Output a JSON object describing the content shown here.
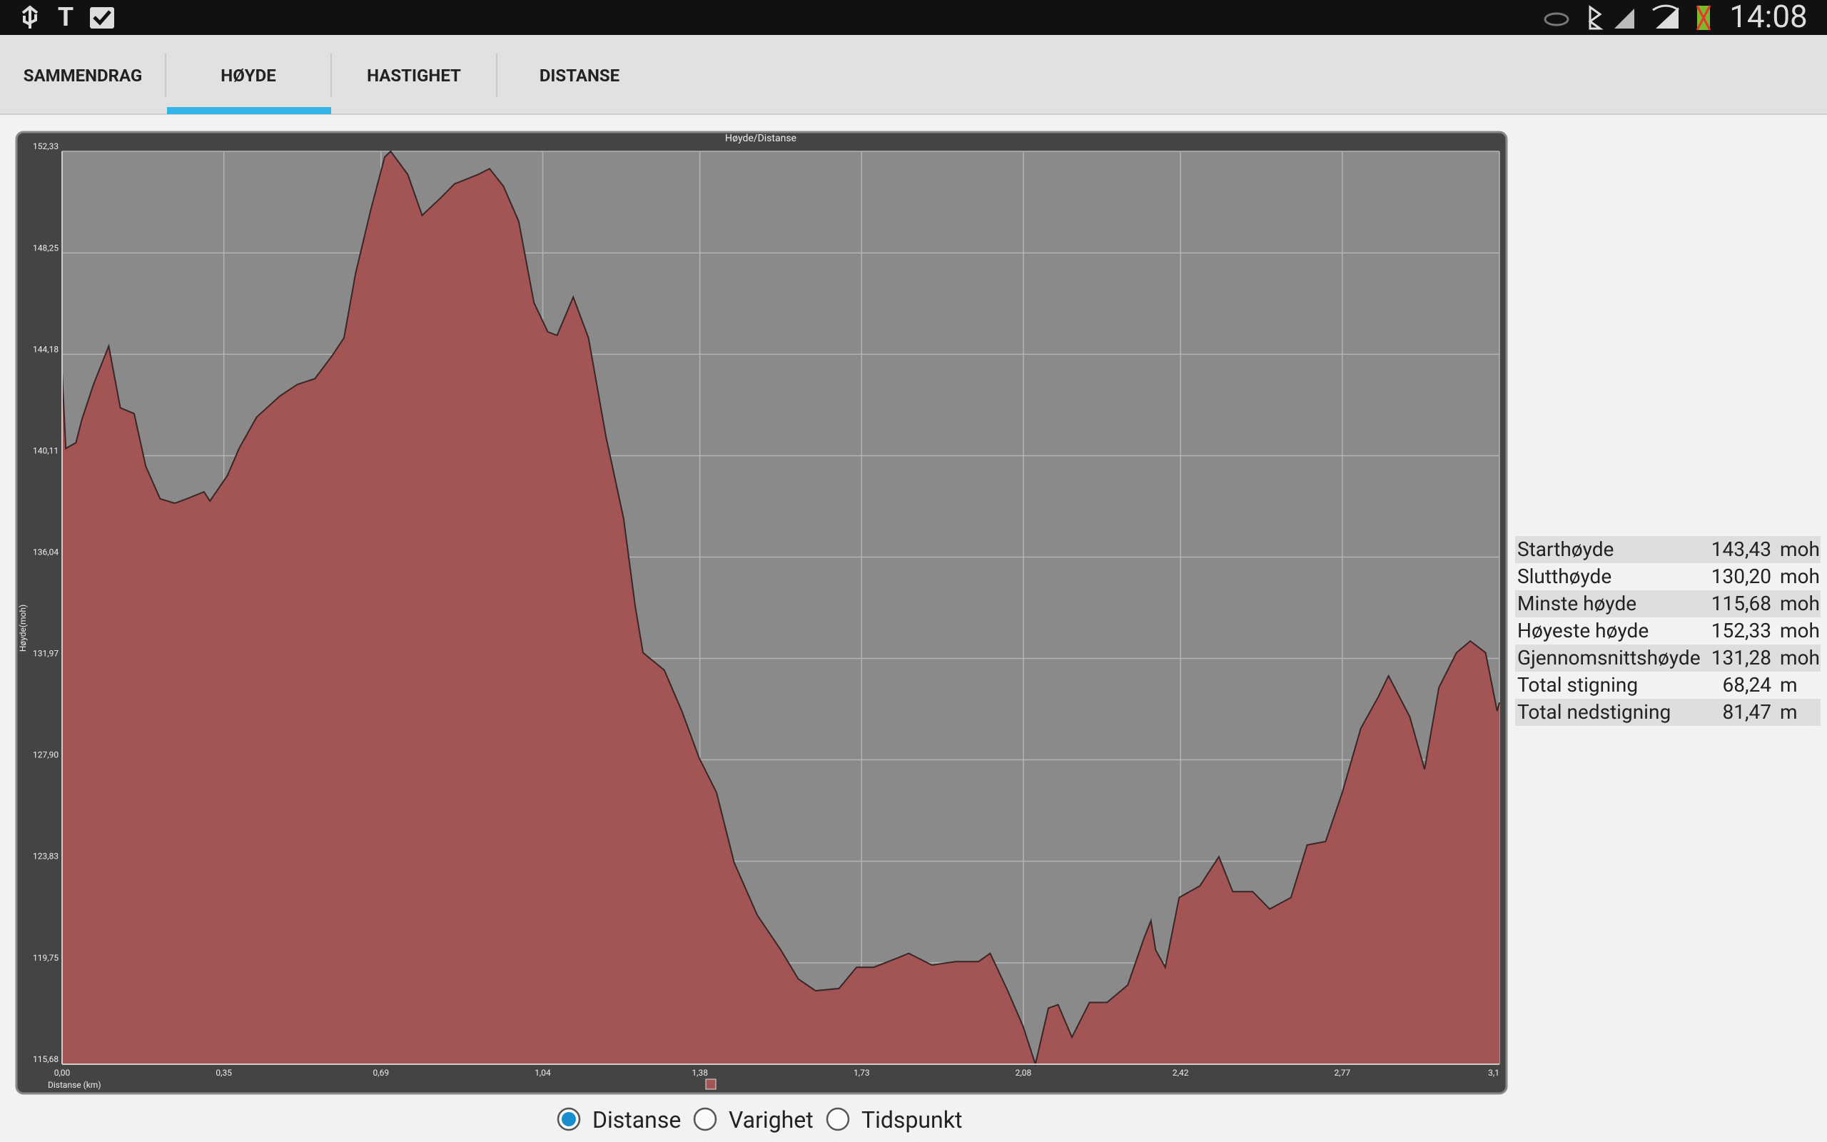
{
  "status_bar": {
    "time": "14:08"
  },
  "tabs": [
    "SAMMENDRAG",
    "HØYDE",
    "HASTIGHET",
    "DISTANSE"
  ],
  "selected_tab": 1,
  "chart_data": {
    "type": "area",
    "title": "Høyde/Distanse",
    "x_label": "Distanse (km)",
    "y_label": "Høyde(moh)",
    "color": "#a35555",
    "line_color": "#3a2626",
    "grid": true,
    "xlim": [
      0,
      3.11
    ],
    "ylim": [
      115.68,
      152.33
    ],
    "xticks": [
      {
        "value": 0,
        "label": "0,00"
      },
      {
        "value": 0.35,
        "label": "0,35"
      },
      {
        "value": 0.69,
        "label": "0,69"
      },
      {
        "value": 1.04,
        "label": "1,04"
      },
      {
        "value": 1.38,
        "label": "1,38"
      },
      {
        "value": 1.73,
        "label": "1,73"
      },
      {
        "value": 2.08,
        "label": "2,08"
      },
      {
        "value": 2.42,
        "label": "2,42"
      },
      {
        "value": 2.77,
        "label": "2,77"
      },
      {
        "value": 3.11,
        "label": "3,1"
      }
    ],
    "yticks": [
      {
        "value": 115.68,
        "label": "115,68"
      },
      {
        "value": 119.75,
        "label": "119,75"
      },
      {
        "value": 123.83,
        "label": "123,83"
      },
      {
        "value": 127.9,
        "label": "127,90"
      },
      {
        "value": 131.97,
        "label": "131,97"
      },
      {
        "value": 136.04,
        "label": "136,04"
      },
      {
        "value": 140.11,
        "label": "140,11"
      },
      {
        "value": 144.18,
        "label": "144,18"
      },
      {
        "value": 148.25,
        "label": "148,25"
      },
      {
        "value": 152.33,
        "label": "152,33"
      }
    ],
    "x": [
      0,
      0.008,
      0.03,
      0.043,
      0.068,
      0.101,
      0.126,
      0.156,
      0.181,
      0.212,
      0.244,
      0.27,
      0.307,
      0.32,
      0.358,
      0.383,
      0.421,
      0.471,
      0.509,
      0.547,
      0.585,
      0.61,
      0.635,
      0.668,
      0.698,
      0.711,
      0.748,
      0.779,
      0.819,
      0.849,
      0.9,
      0.925,
      0.955,
      0.988,
      1.021,
      1.051,
      1.071,
      1.106,
      1.139,
      1.177,
      1.215,
      1.24,
      1.257,
      1.303,
      1.341,
      1.378,
      1.416,
      1.454,
      1.504,
      1.555,
      1.593,
      1.63,
      1.681,
      1.719,
      1.756,
      1.807,
      1.832,
      1.882,
      1.933,
      1.983,
      2.008,
      2.046,
      2.079,
      2.106,
      2.134,
      2.155,
      2.185,
      2.223,
      2.261,
      2.306,
      2.341,
      2.356,
      2.366,
      2.387,
      2.417,
      2.462,
      2.503,
      2.533,
      2.576,
      2.613,
      2.659,
      2.694,
      2.734,
      2.77,
      2.81,
      2.848,
      2.87,
      2.916,
      2.948,
      2.979,
      3.017,
      3.047,
      3.08,
      3.105,
      3.11
    ],
    "values": [
      143.43,
      140.4,
      140.63,
      141.57,
      142.97,
      144.51,
      142.03,
      141.8,
      139.69,
      138.38,
      138.2,
      138.38,
      138.66,
      138.29,
      139.32,
      140.4,
      141.66,
      142.5,
      142.97,
      143.2,
      144.14,
      144.84,
      147.42,
      149.99,
      152.1,
      152.33,
      151.4,
      149.76,
      150.46,
      151.02,
      151.4,
      151.63,
      150.93,
      149.52,
      146.25,
      145.08,
      144.94,
      146.48,
      144.84,
      140.86,
      137.59,
      134.08,
      132.2,
      131.5,
      129.86,
      127.99,
      126.59,
      123.78,
      121.67,
      120.27,
      119.1,
      118.63,
      118.72,
      119.57,
      119.57,
      119.94,
      120.13,
      119.66,
      119.8,
      119.8,
      120.13,
      118.63,
      117.22,
      115.68,
      117.93,
      118.07,
      116.76,
      118.16,
      118.16,
      118.86,
      120.74,
      121.44,
      120.27,
      119.57,
      122.37,
      122.84,
      124.01,
      122.61,
      122.61,
      121.91,
      122.37,
      124.48,
      124.62,
      126.59,
      129.16,
      130.43,
      131.27,
      129.63,
      127.52,
      130.8,
      132.2,
      132.67,
      132.2,
      129.86,
      130.2
    ]
  },
  "stats": {
    "rows": [
      [
        "Starthøyde",
        "143,43",
        "moh"
      ],
      [
        "Slutthøyde",
        "130,20",
        "moh"
      ],
      [
        "Minste høyde",
        "115,68",
        "moh"
      ],
      [
        "Høyeste høyde",
        "152,33",
        "moh"
      ],
      [
        "Gjennomsnittshøyde",
        "131,28",
        "moh"
      ],
      [
        "Total stigning",
        "68,24",
        "m"
      ],
      [
        "Total nedstigning",
        "81,47",
        "m"
      ]
    ]
  },
  "x_mode": {
    "options": [
      "Distanse",
      "Varighet",
      "Tidspunkt"
    ],
    "selected": 0
  }
}
